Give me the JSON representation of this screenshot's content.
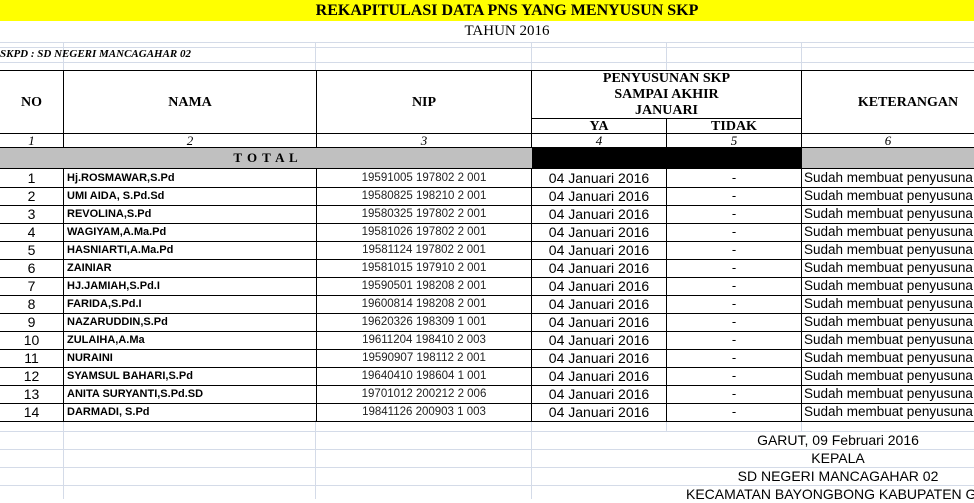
{
  "title": "REKAPITULASI DATA PNS YANG MENYUSUN SKP",
  "subtitle": "TAHUN 2016",
  "skpd": "SKPD : SD NEGERI MANCAGAHAR 02",
  "headers": {
    "no": "NO",
    "nama": "NAMA",
    "nip": "NIP",
    "group_line1": "PENYUSUNAN SKP",
    "group_line2": "SAMPAI AKHIR",
    "group_line3": "JANUARI",
    "ya": "YA",
    "tidak": "TIDAK",
    "keterangan": "KETERANGAN"
  },
  "column_numbers": [
    "1",
    "2",
    "3",
    "4",
    "5",
    "6"
  ],
  "total_label": "T O T A L",
  "rows": [
    {
      "no": "1",
      "nama": "Hj.ROSMAWAR,S.Pd",
      "nip": "19591005 197802 2 001",
      "ya": "04 Januari 2016",
      "tidak": "-",
      "ket": "Sudah membuat penyusuna"
    },
    {
      "no": "2",
      "nama": "UMI AIDA, S.Pd.Sd",
      "nip": "19580825 198210 2 001",
      "ya": "04 Januari 2016",
      "tidak": "-",
      "ket": "Sudah membuat penyusuna"
    },
    {
      "no": "3",
      "nama": "REVOLINA,S.Pd",
      "nip": "19580325 197802 2 001",
      "ya": "04 Januari 2016",
      "tidak": "-",
      "ket": "Sudah membuat penyusuna"
    },
    {
      "no": "4",
      "nama": "WAGIYAM,A.Ma.Pd",
      "nip": "19581026 197802 2 001",
      "ya": "04 Januari 2016",
      "tidak": "-",
      "ket": "Sudah membuat penyusuna"
    },
    {
      "no": "5",
      "nama": "HASNIARTI,A.Ma.Pd",
      "nip": "19581124 197802 2 001",
      "ya": "04 Januari 2016",
      "tidak": "-",
      "ket": "Sudah membuat penyusuna"
    },
    {
      "no": "6",
      "nama": "ZAINIAR",
      "nip": "19581015 197910 2 001",
      "ya": "04 Januari 2016",
      "tidak": "-",
      "ket": "Sudah membuat penyusuna"
    },
    {
      "no": "7",
      "nama": "HJ.JAMIAH,S.Pd.I",
      "nip": "19590501 198208 2 001",
      "ya": "04 Januari 2016",
      "tidak": "-",
      "ket": "Sudah membuat penyusuna"
    },
    {
      "no": "8",
      "nama": "FARIDA,S.Pd.I",
      "nip": "19600814 198208 2 001",
      "ya": "04 Januari 2016",
      "tidak": "-",
      "ket": "Sudah membuat penyusuna"
    },
    {
      "no": "9",
      "nama": "NAZARUDDIN,S.Pd",
      "nip": "19620326 198309 1 001",
      "ya": "04 Januari 2016",
      "tidak": "-",
      "ket": "Sudah membuat penyusuna"
    },
    {
      "no": "10",
      "nama": "ZULAIHA,A.Ma",
      "nip": "19611204 198410 2 003",
      "ya": "04 Januari 2016",
      "tidak": "-",
      "ket": "Sudah membuat penyusuna"
    },
    {
      "no": "11",
      "nama": "NURAINI",
      "nip": "19590907 198112 2 001",
      "ya": "04 Januari 2016",
      "tidak": "-",
      "ket": "Sudah membuat penyusuna"
    },
    {
      "no": "12",
      "nama": "SYAMSUL BAHARI,S.Pd",
      "nip": "19640410 198604 1 001",
      "ya": "04 Januari 2016",
      "tidak": "-",
      "ket": "Sudah membuat penyusuna"
    },
    {
      "no": "13",
      "nama": "ANITA SURYANTI,S.Pd.SD",
      "nip": "19701012 200212 2 006",
      "ya": "04 Januari 2016",
      "tidak": "-",
      "ket": "Sudah membuat penyusuna"
    },
    {
      "no": "14",
      "nama": "DARMADI, S.Pd",
      "nip": "19841126 200903 1 003",
      "ya": "04 Januari 2016",
      "tidak": "-",
      "ket": "Sudah membuat penyusuna"
    }
  ],
  "footer": {
    "place_date": "GARUT, 09 Februari 2016",
    "position": "KEPALA",
    "school": "SD NEGERI MANCAGAHAR 02",
    "district": "KECAMATAN BAYONGBONG KABUPATEN GAR"
  },
  "colors": {
    "title_bg": "#ffff00",
    "total_bg": "#c0c0c0",
    "total_black": "#000000",
    "gridline": "#d4dbe8"
  }
}
